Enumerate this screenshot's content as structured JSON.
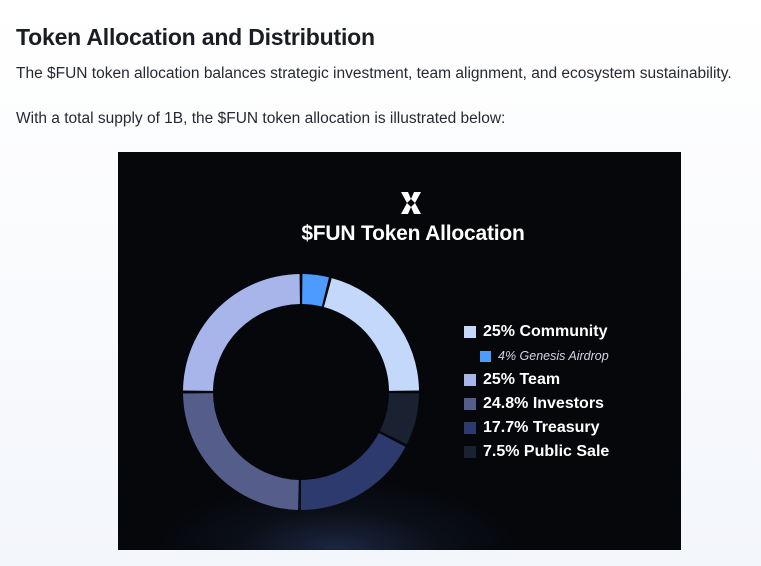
{
  "doc": {
    "title": "Token Allocation and Distribution",
    "para1": "The $FUN token allocation balances strategic investment, team alignment, and ecosystem sustainability.",
    "para2": "With a total supply of 1B, the $FUN token allocation is illustrated below:"
  },
  "chart_data": {
    "type": "pie",
    "title": "$FUN Token Allocation",
    "legend_position": "right",
    "slices": [
      {
        "label": "4% Genesis Airdrop",
        "value": 4,
        "color": "#4d9bff"
      },
      {
        "label": "25% Community",
        "value": 21,
        "color": "#c3d8fb"
      },
      {
        "label": "7.5% Public Sale",
        "value": 7.5,
        "color": "#1a2130"
      },
      {
        "label": "17.7% Treasury",
        "value": 17.7,
        "color": "#2c3a6e"
      },
      {
        "label": "24.8% Investors",
        "value": 24.8,
        "color": "#555e8a"
      },
      {
        "label": "25% Team",
        "value": 25,
        "color": "#a7b5eb"
      }
    ],
    "legend": [
      {
        "label": "25% Community",
        "color": "#c3d8fb",
        "sub": false
      },
      {
        "label": "4% Genesis Airdrop",
        "color": "#4d9bff",
        "sub": true
      },
      {
        "label": "25% Team",
        "color": "#a7b5eb",
        "sub": false
      },
      {
        "label": "24.8% Investors",
        "color": "#555e8a",
        "sub": false
      },
      {
        "label": "17.7% Treasury",
        "color": "#2c3a6e",
        "sub": false
      },
      {
        "label": "7.5% Public Sale",
        "color": "#1a2130",
        "sub": false
      }
    ]
  }
}
